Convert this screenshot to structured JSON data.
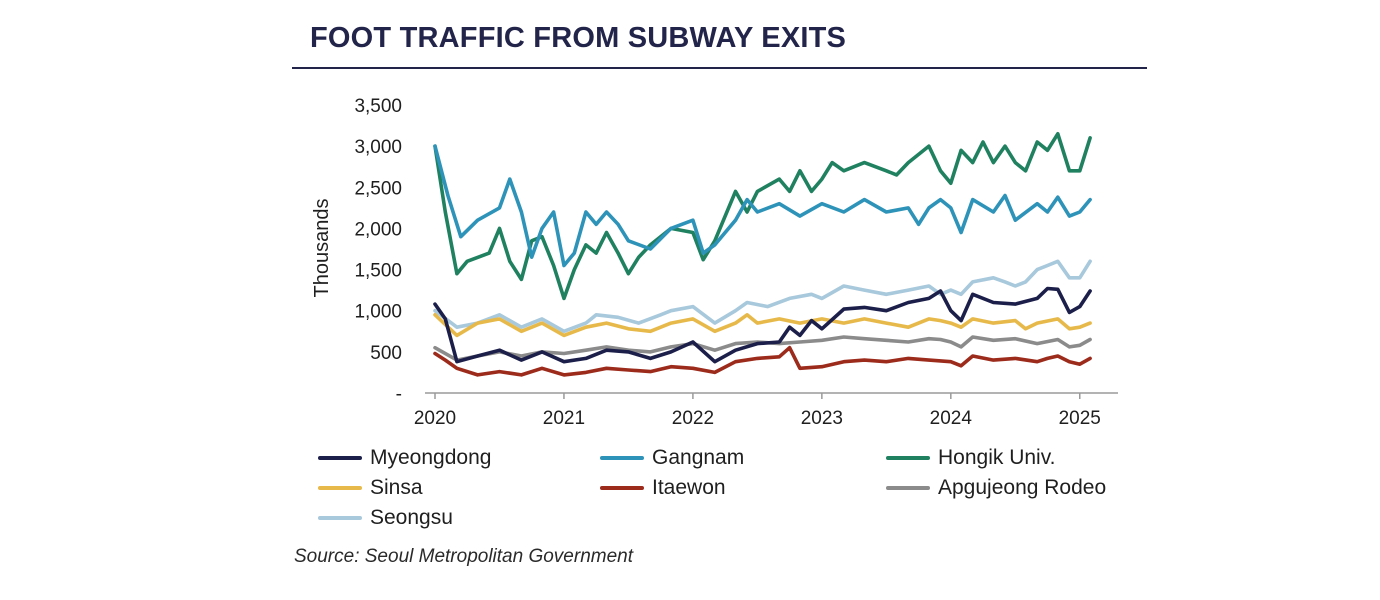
{
  "chart_data": {
    "type": "line",
    "title": "FOOT TRAFFIC FROM SUBWAY EXITS",
    "ylabel": "Thousands",
    "xlabel": "",
    "source": "Source: Seoul Metropolitan Government",
    "ylim": [
      0,
      3500
    ],
    "xlim": [
      2020.0,
      2025.25
    ],
    "yticks": [
      0,
      500,
      1000,
      1500,
      2000,
      2500,
      3000,
      3500
    ],
    "ytick_labels": [
      "-",
      "500",
      "1,000",
      "1,500",
      "2,000",
      "2,500",
      "3,000",
      "3,500"
    ],
    "xticks": [
      2020,
      2021,
      2022,
      2023,
      2024,
      2025
    ],
    "xtick_labels": [
      "2020",
      "2021",
      "2022",
      "2023",
      "2024",
      "2025"
    ],
    "legend_position": "bottom",
    "grid": false,
    "series": [
      {
        "name": "Myeongdong",
        "color": "#1c1f4a",
        "points": [
          [
            2020.0,
            1080
          ],
          [
            2020.08,
            900
          ],
          [
            2020.17,
            380
          ],
          [
            2020.33,
            450
          ],
          [
            2020.5,
            520
          ],
          [
            2020.67,
            400
          ],
          [
            2020.83,
            500
          ],
          [
            2021.0,
            380
          ],
          [
            2021.17,
            420
          ],
          [
            2021.33,
            520
          ],
          [
            2021.5,
            500
          ],
          [
            2021.67,
            420
          ],
          [
            2021.83,
            500
          ],
          [
            2022.0,
            620
          ],
          [
            2022.17,
            380
          ],
          [
            2022.33,
            520
          ],
          [
            2022.5,
            600
          ],
          [
            2022.67,
            620
          ],
          [
            2022.75,
            800
          ],
          [
            2022.83,
            700
          ],
          [
            2022.92,
            880
          ],
          [
            2023.0,
            780
          ],
          [
            2023.17,
            1020
          ],
          [
            2023.33,
            1040
          ],
          [
            2023.5,
            1000
          ],
          [
            2023.67,
            1100
          ],
          [
            2023.83,
            1150
          ],
          [
            2023.92,
            1240
          ],
          [
            2024.0,
            1000
          ],
          [
            2024.08,
            880
          ],
          [
            2024.17,
            1200
          ],
          [
            2024.33,
            1100
          ],
          [
            2024.5,
            1080
          ],
          [
            2024.67,
            1150
          ],
          [
            2024.75,
            1270
          ],
          [
            2024.83,
            1260
          ],
          [
            2024.92,
            980
          ],
          [
            2025.0,
            1050
          ],
          [
            2025.08,
            1240
          ]
        ]
      },
      {
        "name": "Gangnam",
        "color": "#2e93b8",
        "points": [
          [
            2020.0,
            3000
          ],
          [
            2020.1,
            2400
          ],
          [
            2020.2,
            1900
          ],
          [
            2020.33,
            2100
          ],
          [
            2020.5,
            2250
          ],
          [
            2020.58,
            2600
          ],
          [
            2020.67,
            2200
          ],
          [
            2020.75,
            1650
          ],
          [
            2020.83,
            2000
          ],
          [
            2020.92,
            2200
          ],
          [
            2021.0,
            1550
          ],
          [
            2021.08,
            1700
          ],
          [
            2021.17,
            2200
          ],
          [
            2021.25,
            2050
          ],
          [
            2021.33,
            2200
          ],
          [
            2021.42,
            2050
          ],
          [
            2021.5,
            1850
          ],
          [
            2021.67,
            1750
          ],
          [
            2021.83,
            2000
          ],
          [
            2022.0,
            2100
          ],
          [
            2022.08,
            1700
          ],
          [
            2022.17,
            1800
          ],
          [
            2022.33,
            2100
          ],
          [
            2022.42,
            2350
          ],
          [
            2022.5,
            2200
          ],
          [
            2022.67,
            2300
          ],
          [
            2022.83,
            2150
          ],
          [
            2023.0,
            2300
          ],
          [
            2023.17,
            2200
          ],
          [
            2023.33,
            2350
          ],
          [
            2023.5,
            2200
          ],
          [
            2023.67,
            2250
          ],
          [
            2023.75,
            2050
          ],
          [
            2023.83,
            2250
          ],
          [
            2023.92,
            2350
          ],
          [
            2024.0,
            2250
          ],
          [
            2024.08,
            1950
          ],
          [
            2024.17,
            2350
          ],
          [
            2024.33,
            2200
          ],
          [
            2024.42,
            2400
          ],
          [
            2024.5,
            2100
          ],
          [
            2024.67,
            2300
          ],
          [
            2024.75,
            2200
          ],
          [
            2024.83,
            2380
          ],
          [
            2024.92,
            2150
          ],
          [
            2025.0,
            2200
          ],
          [
            2025.08,
            2350
          ]
        ]
      },
      {
        "name": "Hongik Univ.",
        "color": "#1f8160",
        "points": [
          [
            2020.0,
            3000
          ],
          [
            2020.08,
            2200
          ],
          [
            2020.17,
            1450
          ],
          [
            2020.25,
            1600
          ],
          [
            2020.42,
            1700
          ],
          [
            2020.5,
            2000
          ],
          [
            2020.58,
            1600
          ],
          [
            2020.67,
            1380
          ],
          [
            2020.75,
            1850
          ],
          [
            2020.83,
            1900
          ],
          [
            2020.92,
            1550
          ],
          [
            2021.0,
            1150
          ],
          [
            2021.08,
            1500
          ],
          [
            2021.17,
            1800
          ],
          [
            2021.25,
            1700
          ],
          [
            2021.33,
            1950
          ],
          [
            2021.42,
            1700
          ],
          [
            2021.5,
            1450
          ],
          [
            2021.58,
            1650
          ],
          [
            2021.67,
            1800
          ],
          [
            2021.83,
            2000
          ],
          [
            2022.0,
            1950
          ],
          [
            2022.08,
            1620
          ],
          [
            2022.17,
            1850
          ],
          [
            2022.33,
            2450
          ],
          [
            2022.42,
            2200
          ],
          [
            2022.5,
            2450
          ],
          [
            2022.67,
            2600
          ],
          [
            2022.75,
            2450
          ],
          [
            2022.83,
            2700
          ],
          [
            2022.92,
            2450
          ],
          [
            2023.0,
            2600
          ],
          [
            2023.08,
            2800
          ],
          [
            2023.17,
            2700
          ],
          [
            2023.33,
            2800
          ],
          [
            2023.5,
            2700
          ],
          [
            2023.58,
            2650
          ],
          [
            2023.67,
            2800
          ],
          [
            2023.83,
            3000
          ],
          [
            2023.92,
            2700
          ],
          [
            2024.0,
            2550
          ],
          [
            2024.08,
            2950
          ],
          [
            2024.17,
            2800
          ],
          [
            2024.25,
            3050
          ],
          [
            2024.33,
            2800
          ],
          [
            2024.42,
            3000
          ],
          [
            2024.5,
            2800
          ],
          [
            2024.58,
            2700
          ],
          [
            2024.67,
            3050
          ],
          [
            2024.75,
            2950
          ],
          [
            2024.83,
            3150
          ],
          [
            2024.92,
            2700
          ],
          [
            2025.0,
            2700
          ],
          [
            2025.08,
            3100
          ]
        ]
      },
      {
        "name": "Sinsa",
        "color": "#e7b94a",
        "points": [
          [
            2020.0,
            950
          ],
          [
            2020.17,
            700
          ],
          [
            2020.33,
            850
          ],
          [
            2020.5,
            900
          ],
          [
            2020.67,
            750
          ],
          [
            2020.83,
            850
          ],
          [
            2021.0,
            700
          ],
          [
            2021.17,
            800
          ],
          [
            2021.33,
            850
          ],
          [
            2021.5,
            780
          ],
          [
            2021.67,
            750
          ],
          [
            2021.83,
            850
          ],
          [
            2022.0,
            900
          ],
          [
            2022.17,
            750
          ],
          [
            2022.33,
            850
          ],
          [
            2022.42,
            950
          ],
          [
            2022.5,
            850
          ],
          [
            2022.67,
            900
          ],
          [
            2022.83,
            850
          ],
          [
            2023.0,
            900
          ],
          [
            2023.17,
            850
          ],
          [
            2023.33,
            900
          ],
          [
            2023.5,
            850
          ],
          [
            2023.67,
            800
          ],
          [
            2023.83,
            900
          ],
          [
            2023.92,
            880
          ],
          [
            2024.0,
            850
          ],
          [
            2024.08,
            800
          ],
          [
            2024.17,
            900
          ],
          [
            2024.33,
            850
          ],
          [
            2024.5,
            880
          ],
          [
            2024.58,
            780
          ],
          [
            2024.67,
            850
          ],
          [
            2024.83,
            900
          ],
          [
            2024.92,
            780
          ],
          [
            2025.0,
            800
          ],
          [
            2025.08,
            850
          ]
        ]
      },
      {
        "name": "Itaewon",
        "color": "#9c2b1c",
        "points": [
          [
            2020.0,
            480
          ],
          [
            2020.08,
            400
          ],
          [
            2020.17,
            300
          ],
          [
            2020.33,
            220
          ],
          [
            2020.5,
            260
          ],
          [
            2020.67,
            220
          ],
          [
            2020.83,
            300
          ],
          [
            2021.0,
            220
          ],
          [
            2021.17,
            250
          ],
          [
            2021.33,
            300
          ],
          [
            2021.5,
            280
          ],
          [
            2021.67,
            260
          ],
          [
            2021.83,
            320
          ],
          [
            2022.0,
            300
          ],
          [
            2022.17,
            250
          ],
          [
            2022.33,
            380
          ],
          [
            2022.5,
            420
          ],
          [
            2022.67,
            440
          ],
          [
            2022.75,
            550
          ],
          [
            2022.83,
            300
          ],
          [
            2023.0,
            320
          ],
          [
            2023.17,
            380
          ],
          [
            2023.33,
            400
          ],
          [
            2023.5,
            380
          ],
          [
            2023.67,
            420
          ],
          [
            2023.83,
            400
          ],
          [
            2024.0,
            380
          ],
          [
            2024.08,
            330
          ],
          [
            2024.17,
            450
          ],
          [
            2024.33,
            400
          ],
          [
            2024.5,
            420
          ],
          [
            2024.67,
            380
          ],
          [
            2024.75,
            420
          ],
          [
            2024.83,
            450
          ],
          [
            2024.92,
            380
          ],
          [
            2025.0,
            350
          ],
          [
            2025.08,
            420
          ]
        ]
      },
      {
        "name": "Apgujeong Rodeo",
        "color": "#8b8b8b",
        "points": [
          [
            2020.0,
            550
          ],
          [
            2020.17,
            400
          ],
          [
            2020.33,
            450
          ],
          [
            2020.5,
            500
          ],
          [
            2020.67,
            450
          ],
          [
            2020.83,
            500
          ],
          [
            2021.0,
            480
          ],
          [
            2021.17,
            520
          ],
          [
            2021.33,
            560
          ],
          [
            2021.5,
            520
          ],
          [
            2021.67,
            500
          ],
          [
            2021.83,
            560
          ],
          [
            2022.0,
            600
          ],
          [
            2022.17,
            520
          ],
          [
            2022.33,
            600
          ],
          [
            2022.5,
            620
          ],
          [
            2022.67,
            600
          ],
          [
            2022.83,
            620
          ],
          [
            2023.0,
            640
          ],
          [
            2023.17,
            680
          ],
          [
            2023.33,
            660
          ],
          [
            2023.5,
            640
          ],
          [
            2023.67,
            620
          ],
          [
            2023.83,
            660
          ],
          [
            2023.92,
            650
          ],
          [
            2024.0,
            620
          ],
          [
            2024.08,
            560
          ],
          [
            2024.17,
            680
          ],
          [
            2024.33,
            640
          ],
          [
            2024.5,
            660
          ],
          [
            2024.67,
            600
          ],
          [
            2024.83,
            650
          ],
          [
            2024.92,
            560
          ],
          [
            2025.0,
            580
          ],
          [
            2025.08,
            650
          ]
        ]
      },
      {
        "name": "Seongsu",
        "color": "#a8c8dc",
        "points": [
          [
            2020.0,
            1000
          ],
          [
            2020.17,
            800
          ],
          [
            2020.33,
            850
          ],
          [
            2020.5,
            950
          ],
          [
            2020.67,
            800
          ],
          [
            2020.83,
            900
          ],
          [
            2021.0,
            750
          ],
          [
            2021.17,
            850
          ],
          [
            2021.25,
            950
          ],
          [
            2021.42,
            920
          ],
          [
            2021.58,
            850
          ],
          [
            2021.75,
            950
          ],
          [
            2021.83,
            1000
          ],
          [
            2022.0,
            1050
          ],
          [
            2022.17,
            850
          ],
          [
            2022.33,
            1000
          ],
          [
            2022.42,
            1100
          ],
          [
            2022.58,
            1050
          ],
          [
            2022.75,
            1150
          ],
          [
            2022.92,
            1200
          ],
          [
            2023.0,
            1150
          ],
          [
            2023.17,
            1300
          ],
          [
            2023.33,
            1250
          ],
          [
            2023.5,
            1200
          ],
          [
            2023.67,
            1250
          ],
          [
            2023.83,
            1300
          ],
          [
            2023.92,
            1200
          ],
          [
            2024.0,
            1250
          ],
          [
            2024.08,
            1200
          ],
          [
            2024.17,
            1350
          ],
          [
            2024.33,
            1400
          ],
          [
            2024.42,
            1350
          ],
          [
            2024.5,
            1300
          ],
          [
            2024.58,
            1350
          ],
          [
            2024.67,
            1500
          ],
          [
            2024.75,
            1550
          ],
          [
            2024.83,
            1600
          ],
          [
            2024.92,
            1400
          ],
          [
            2025.0,
            1400
          ],
          [
            2025.08,
            1600
          ]
        ]
      }
    ]
  }
}
